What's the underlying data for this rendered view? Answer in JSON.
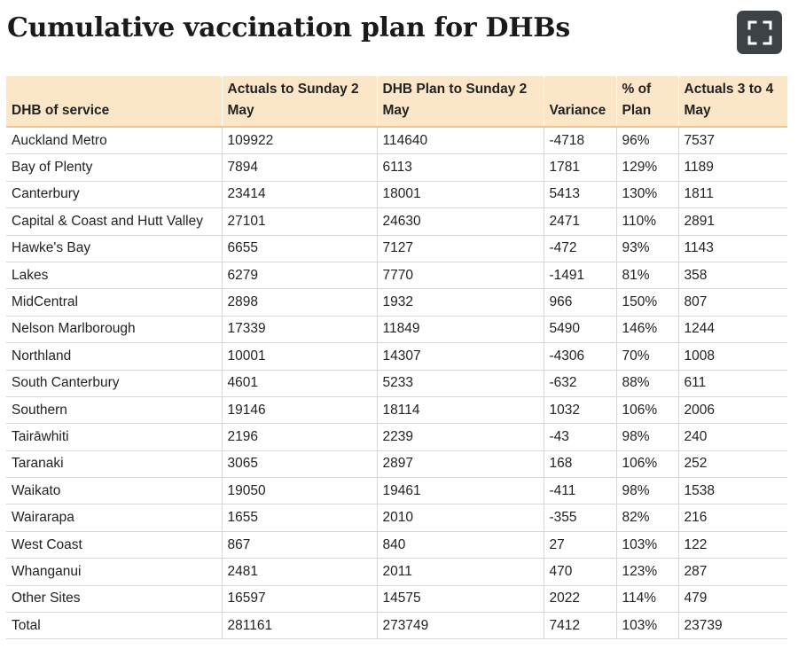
{
  "title": "Cumulative vaccination plan for DHBs",
  "expand_icon": "fullscreen-icon",
  "table": {
    "headers": [
      "DHB of service",
      "Actuals to Sunday 2 May",
      "DHB Plan to Sunday 2 May",
      "Variance",
      "% of Plan",
      "Actuals 3 to 4 May"
    ],
    "rows": [
      [
        "Auckland Metro",
        "109922",
        "114640",
        "-4718",
        "96%",
        "7537"
      ],
      [
        "Bay of Plenty",
        "7894",
        "6113",
        "1781",
        "129%",
        "1189"
      ],
      [
        "Canterbury",
        "23414",
        "18001",
        "5413",
        "130%",
        "1811"
      ],
      [
        "Capital & Coast and Hutt Valley",
        "27101",
        "24630",
        "2471",
        "110%",
        "2891"
      ],
      [
        "Hawke's Bay",
        "6655",
        "7127",
        "-472",
        "93%",
        "1143"
      ],
      [
        "Lakes",
        "6279",
        "7770",
        "-1491",
        "81%",
        "358"
      ],
      [
        "MidCentral",
        "2898",
        "1932",
        "966",
        "150%",
        "807"
      ],
      [
        "Nelson Marlborough",
        "17339",
        "11849",
        "5490",
        "146%",
        "1244"
      ],
      [
        "Northland",
        "10001",
        "14307",
        "-4306",
        "70%",
        "1008"
      ],
      [
        "South Canterbury",
        "4601",
        "5233",
        "-632",
        "88%",
        "611"
      ],
      [
        "Southern",
        "19146",
        "18114",
        "1032",
        "106%",
        "2006"
      ],
      [
        "Tairāwhiti",
        "2196",
        "2239",
        "-43",
        "98%",
        "240"
      ],
      [
        "Taranaki",
        "3065",
        "2897",
        "168",
        "106%",
        "252"
      ],
      [
        "Waikato",
        "19050",
        "19461",
        "-411",
        "98%",
        "1538"
      ],
      [
        "Wairarapa",
        "1655",
        "2010",
        "-355",
        "82%",
        "216"
      ],
      [
        "West Coast",
        "867",
        "840",
        "27",
        "103%",
        "122"
      ],
      [
        "Whanganui",
        "2481",
        "2011",
        "470",
        "123%",
        "287"
      ],
      [
        "Other Sites",
        "16597",
        "14575",
        "2022",
        "114%",
        "479"
      ],
      [
        "Total",
        "281161",
        "273749",
        "7412",
        "103%",
        "23739"
      ]
    ]
  }
}
